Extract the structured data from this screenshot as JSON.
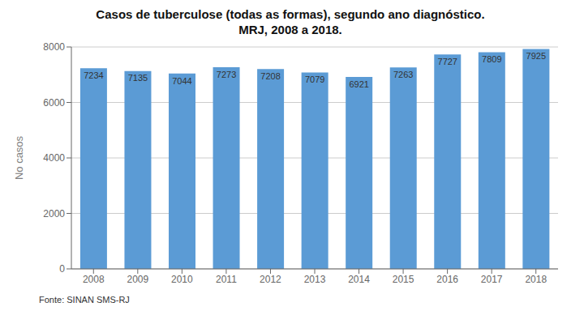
{
  "chart_data": {
    "type": "bar",
    "title": "Casos de tuberculose (todas as formas), segundo ano diagnóstico.",
    "subtitle": "MRJ, 2008 a 2018.",
    "categories": [
      "2008",
      "2009",
      "2010",
      "2011",
      "2012",
      "2013",
      "2014",
      "2015",
      "2016",
      "2017",
      "2018"
    ],
    "values": [
      7234,
      7135,
      7044,
      7273,
      7208,
      7079,
      6921,
      7263,
      7727,
      7809,
      7925
    ],
    "color": "#5B9BD5",
    "ylabel": "No casos",
    "ylim": [
      0,
      8000
    ],
    "yticks": [
      0,
      2000,
      4000,
      6000,
      8000
    ],
    "grid": true,
    "data_labels": true,
    "annotations": [
      "Fonte: SINAN SMS-RJ"
    ]
  }
}
